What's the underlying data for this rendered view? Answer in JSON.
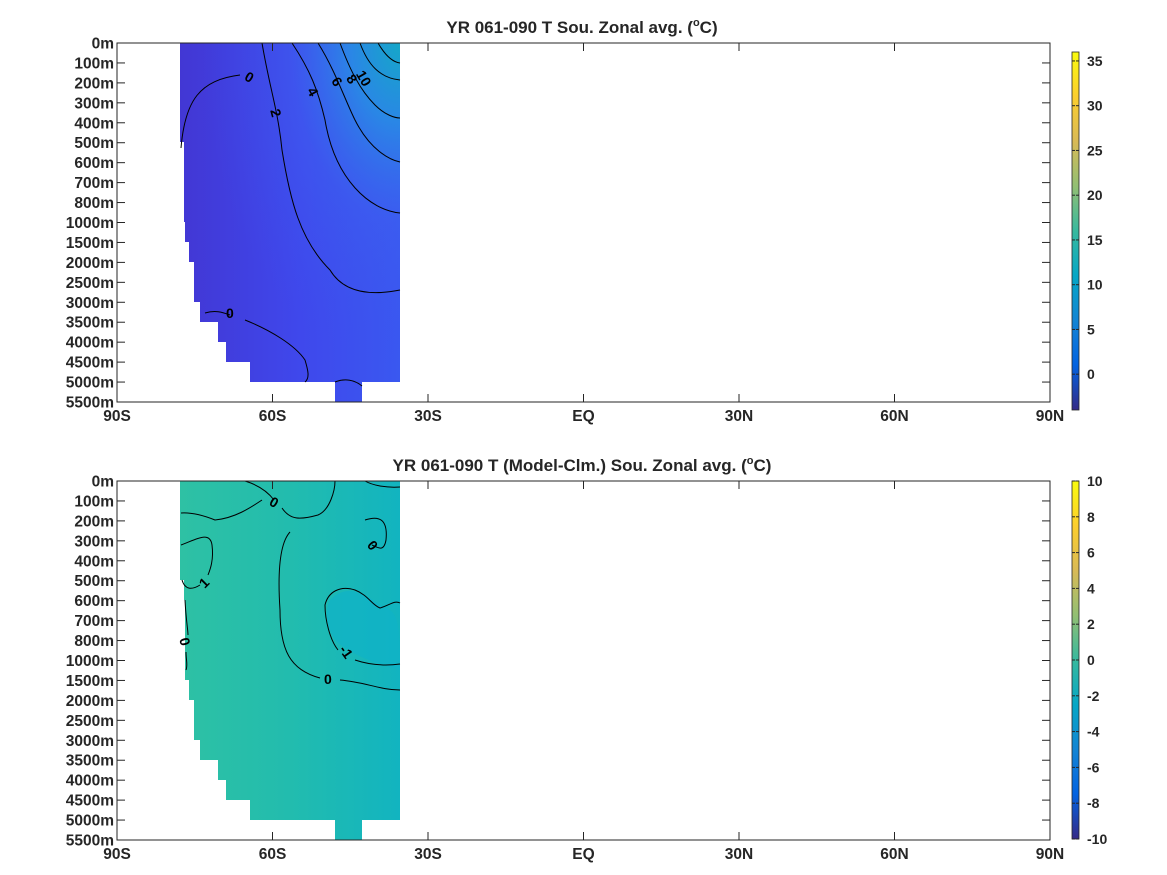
{
  "chart_data": [
    {
      "type": "heatmap",
      "title": "YR 061-090 T Sou. Zonal avg. (",
      "title_unit": "o",
      "title_end": "C)",
      "xticks": [
        "90S",
        "60S",
        "30S",
        "EQ",
        "30N",
        "60N",
        "90N"
      ],
      "yticks": [
        "0m",
        "100m",
        "200m",
        "300m",
        "400m",
        "500m",
        "600m",
        "700m",
        "800m",
        "1000m",
        "1500m",
        "2000m",
        "2500m",
        "3000m",
        "3500m",
        "4000m",
        "4500m",
        "5000m",
        "5500m"
      ],
      "xlim": [
        -90,
        90
      ],
      "colorbar_ticks": [
        "35",
        "30",
        "25",
        "20",
        "15",
        "10",
        "5",
        "0"
      ],
      "colorbar_range": [
        -4,
        36
      ],
      "colorbar_values": [
        35,
        30,
        25,
        20,
        15,
        10,
        5,
        0
      ],
      "colormap": "parula",
      "grid": false,
      "contour_labels": [
        "0",
        "10",
        "8",
        "6",
        "4",
        "2",
        "0"
      ],
      "data_extent": {
        "lat_min": -77,
        "lat_max": -35,
        "note_depth_max": "5000m"
      },
      "sample_values": [
        {
          "lat": -75,
          "depth": "0m",
          "value": -1.5
        },
        {
          "lat": -55,
          "depth": "0m",
          "value": 4
        },
        {
          "lat": -35,
          "depth": "0m",
          "value": 14
        },
        {
          "lat": -40,
          "depth": "500m",
          "value": 8
        },
        {
          "lat": -60,
          "depth": "1000m",
          "value": 1.5
        },
        {
          "lat": -40,
          "depth": "2000m",
          "value": 3
        },
        {
          "lat": -55,
          "depth": "4000m",
          "value": 0.5
        }
      ]
    },
    {
      "type": "heatmap",
      "title": "YR 061-090 T (Model-Clm.) Sou. Zonal avg. (",
      "title_unit": "o",
      "title_end": "C)",
      "xticks": [
        "90S",
        "60S",
        "30S",
        "EQ",
        "30N",
        "60N",
        "90N"
      ],
      "yticks": [
        "0m",
        "100m",
        "200m",
        "300m",
        "400m",
        "500m",
        "600m",
        "700m",
        "800m",
        "1000m",
        "1500m",
        "2000m",
        "2500m",
        "3000m",
        "3500m",
        "4000m",
        "4500m",
        "5000m",
        "5500m"
      ],
      "xlim": [
        -90,
        90
      ],
      "colorbar_ticks": [
        "10",
        "8",
        "6",
        "4",
        "2",
        "0",
        "-2",
        "-4",
        "-6",
        "-8",
        "-10"
      ],
      "colorbar_range": [
        -10,
        10
      ],
      "colorbar_values": [
        10,
        8,
        6,
        4,
        2,
        0,
        -2,
        -4,
        -6,
        -8,
        -10
      ],
      "colormap": "parula",
      "grid": false,
      "contour_labels": [
        "0",
        "0",
        "1",
        "0",
        "-1",
        "0"
      ],
      "data_extent": {
        "lat_min": -77,
        "lat_max": -35,
        "note_depth_max": "5000m"
      },
      "sample_values": [
        {
          "lat": -75,
          "depth": "500m",
          "value": 1
        },
        {
          "lat": -40,
          "depth": "800m",
          "value": -1.2
        },
        {
          "lat": -60,
          "depth": "1500m",
          "value": 0.3
        },
        {
          "lat": -50,
          "depth": "3000m",
          "value": 0.2
        }
      ]
    }
  ]
}
